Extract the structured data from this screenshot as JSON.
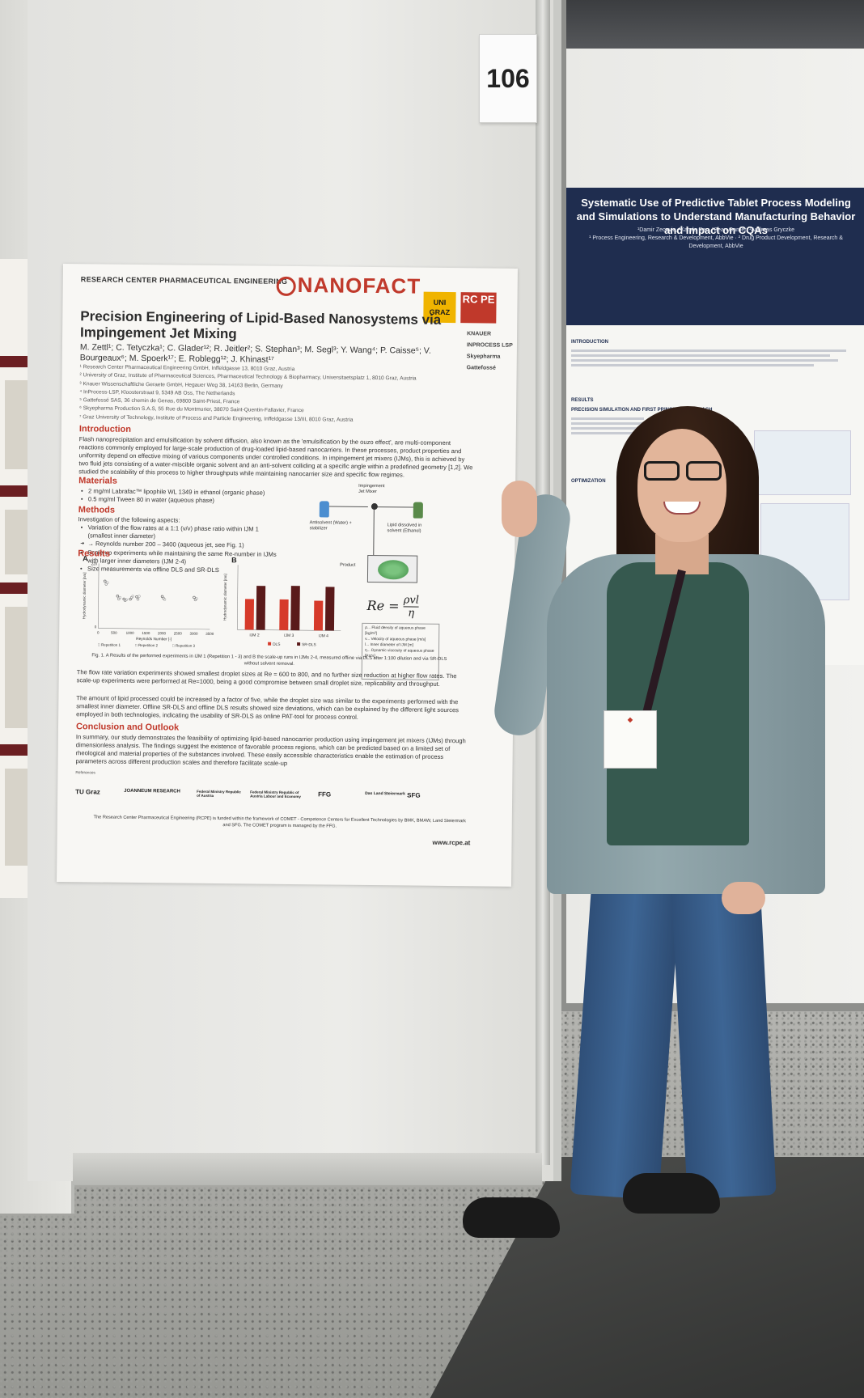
{
  "booth": {
    "number": "106"
  },
  "poster": {
    "research_center": "RESEARCH CENTER PHARMACEUTICAL ENGINEERING",
    "project_logo": "NANOFACT",
    "uni_logo": "UNI GRAZ",
    "rcpe_logo": "RC PE",
    "partners": [
      "KNAUER",
      "INPROCESS LSP",
      "Skyepharma",
      "Gattefossé"
    ],
    "title": "Precision Engineering of Lipid-Based Nanosystems via Impingement Jet Mixing",
    "authors": "M. Zettl¹; C. Tetyczka¹; C. Glader¹²; R. Jeitler²; S. Stephan³; M. Segl³; Y. Wang⁴; P. Caisse⁵; V. Bourgeaux⁶; M. Spoerk¹⁷; E. Roblegg¹²; J. Khinast¹⁷",
    "affiliations": [
      "¹ Research Center Pharmaceutical Engineering GmbH, Inffeldgasse 13, 8010 Graz, Austria",
      "² University of Graz, Institute of Pharmaceutical Sciences, Pharmaceutical Technology & Biopharmacy, Universitaetsplatz 1, 8010 Graz, Austria",
      "³ Knauer Wissenschaftliche Geraete GmbH, Hegauer Weg 38, 14163 Berlin, Germany",
      "⁴ InProcess-LSP, Kloosterstraat 9, 5349 AB Oss, The Netherlands",
      "⁵ Gattefossé SAS, 36 chemin de Genas, 69800 Saint-Priest, France",
      "⁶ Skyepharma Production S.A.S, 55 Rue du Montmurier, 38070 Saint-Quentin-Fallavier, France",
      "⁷ Graz University of Technology, Institute of Process and Particle Engineering, Inffeldgasse 13/III, 8010 Graz, Austria"
    ],
    "intro_heading": "Introduction",
    "intro_text": "Flash nanoprecipitation and emulsification by solvent diffusion, also known as the 'emulsification by the ouzo effect', are multi-component reactions commonly employed for large-scale production of drug-loaded lipid-based nanocarriers. In these processes, product properties and uniformity depend on effective mixing of various components under controlled conditions. In impingement jet mixers (IJMs), this is achieved by two fluid jets consisting of a water-miscible organic solvent and an anti-solvent colliding at a specific angle within a predefined geometry [1,2]. We studied the scalability of this process to higher throughputs while maintaining nanocarrier size and specific flow regimes.",
    "materials_heading": "Materials",
    "materials": [
      "2 mg/ml Labrafac™ lipophile WL 1349 in ethanol (organic phase)",
      "0.5 mg/ml Tween 80 in water (aqueous phase)"
    ],
    "methods_heading": "Methods",
    "methods_intro": "Investigation of the following aspects:",
    "methods": [
      {
        "text": "Variation of the flow rates at a 1:1 (v/v) phase ratio within IJM 1 (smallest inner diameter)",
        "arrow": false
      },
      {
        "text": "→ Reynolds number 200 – 3400 (aqueous jet, see Fig. 1)",
        "arrow": true
      },
      {
        "text": "Scale-up experiments while maintaining the same Re-number in IJMs with larger inner diameters (IJM 2-4)",
        "arrow": false
      },
      {
        "text": "Size measurements via offline DLS and SR-DLS",
        "arrow": false
      }
    ],
    "schematic": {
      "mixer_label": "Impingement Jet Mixer",
      "antisolvent": "Antisolvent (Water) + stabilizer",
      "lipid": "Lipid dissolved in solvent (Ethanol)",
      "product": "Product"
    },
    "formula": {
      "lhs": "Re =",
      "num": "ρvl",
      "den": "η"
    },
    "formula_legend": [
      "ρ... Fluid density of aqueous phase [kg/m³]",
      "v... Velocity of aqueous phase [m/s]",
      "l... Inner diameter of IJM [m]",
      "η... Dynamic viscosity of aqueous phase [Pa*s]"
    ],
    "results_heading": "Results",
    "fig_caption": "Fig. 1. A Results of the performed experiments in IJM 1 (Repetition 1 - 3) and B the scale-up runs in IJMs 2-4, measured offline via DLS after 1:100 dilution and via SR-DLS without solvent removal.",
    "results_text_1": "The flow rate variation experiments showed smallest droplet sizes at Re = 600 to 800, and no further size reduction at higher flow rates. The scale-up experiments were performed at Re=1000, being a good compromise between small droplet size, replicability and throughput.",
    "results_text_2": "The amount of lipid processed could be increased by a factor of five, while the droplet size was similar to the experiments performed with the smallest inner diameter. Offline SR-DLS and offline DLS results showed size deviations, which can be explained by the different light sources employed in both technologies, indicating the usability of SR-DLS as online PAT-tool for process control.",
    "conclusion_heading": "Conclusion and Outlook",
    "conclusion_text": "In summary, our study demonstrates the feasibility of optimizing lipid-based nanocarrier production using impingement jet mixers (IJMs) through dimensionless analysis. The findings suggest the existence of favorable process regions, which can be predicted based on a limited set of rheological and material properties of the substances involved. These easily accessible characteristics enable the estimation of process parameters across different production scales and therefore facilitate scale-up",
    "references_heading": "References",
    "footer_logos": [
      "TU Graz",
      "JOANNEUM RESEARCH",
      "Federal Ministry Republic of Austria",
      "Federal Ministry Republic of Austria Labour and Economy",
      "FFG",
      "Das Land Steiermark",
      "SFG"
    ],
    "funding": "The Research Center Pharmaceutical Engineering (RCPE) is funded within the framework of COMET - Competence Centers for Excellent Technologies by BMK, BMAW, Land Steiermark and SFG. The COMET program is managed by the FFG.",
    "url": "www.rcpe.at"
  },
  "chart_data": [
    {
      "type": "scatter",
      "title": "A",
      "xlabel": "Reynolds Number [-]",
      "ylabel": "Hydrodynamic diameter [nm]",
      "xlim": [
        0,
        3500
      ],
      "ylim": [
        0,
        220
      ],
      "xticks": [
        "0",
        "500",
        "1000",
        "1500",
        "2000",
        "2500",
        "3000",
        "3500"
      ],
      "series": [
        {
          "name": "Repetition 1",
          "x": [
            200,
            600,
            800,
            1000,
            1200,
            2000,
            3000
          ],
          "y": [
            160,
            110,
            100,
            100,
            108,
            110,
            108
          ]
        },
        {
          "name": "Repetition 2",
          "x": [
            200,
            600,
            800,
            1000,
            1200,
            2000,
            3000
          ],
          "y": [
            150,
            100,
            95,
            105,
            100,
            104,
            100
          ]
        },
        {
          "name": "Repetition 3",
          "x": [
            200,
            600,
            800,
            1000,
            1200,
            2000,
            3000
          ],
          "y": [
            155,
            105,
            98,
            110,
            110,
            100,
            104
          ]
        }
      ]
    },
    {
      "type": "bar",
      "title": "B",
      "ylabel": "Hydrodynamic diameter [nm]",
      "categories": [
        "IJM 2",
        "IJM 3",
        "IJM 4"
      ],
      "ylim": [
        0,
        200
      ],
      "series": [
        {
          "name": "DLS",
          "color": "#d63a2a",
          "values": [
            95,
            95,
            92
          ]
        },
        {
          "name": "SR-DLS",
          "color": "#5a1a1a",
          "values": [
            136,
            137,
            135
          ]
        }
      ]
    }
  ],
  "right_poster": {
    "title": "Systematic Use of Predictive Tablet Process Modeling and Simulations to Understand Manufacturing Behavior and Impact on CQAs",
    "authors": "¹Damir Zecevic, ²Karola Rau, ³Sean Garner, ¹Andreas Gryczke",
    "affiliations": "¹ Process Engineering, Research & Development, AbbVie · ² Drug Product Development, Research & Development, AbbVie",
    "sections": [
      "INTRODUCTION",
      "RESULTS",
      "PRECISION SIMULATION AND FIRST PRINCIPLE APPROACH",
      "OPTIMIZATION"
    ]
  },
  "colors": {
    "accent": "#c0392b",
    "right_header": "#1f2d4f",
    "bar_dls": "#d63a2a",
    "bar_srdls": "#5a1a1a"
  }
}
